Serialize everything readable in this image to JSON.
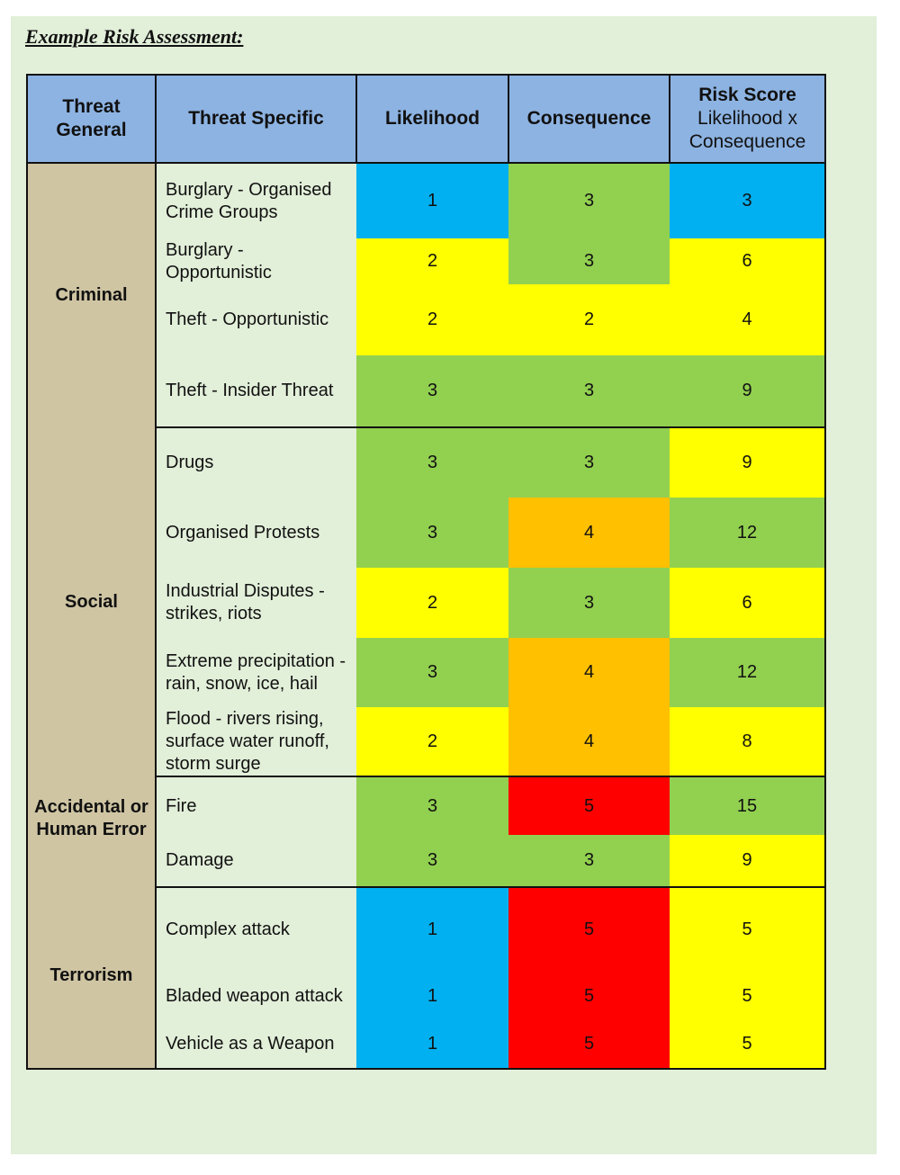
{
  "title": "Example Risk Assessment:",
  "headers": {
    "general": "Threat General",
    "specific": "Threat Specific",
    "likelihood": "Likelihood",
    "consequence": "Consequence",
    "risk_score": "Risk Score",
    "risk_score_sub": "Likelihood x Consequence"
  },
  "colors": {
    "blue": "#00b0f0",
    "green": "#92d050",
    "yellow": "#ffff00",
    "orange": "#ffc000",
    "red": "#ff0000",
    "header": "#8db3e2",
    "general_cell": "#cfc5a3",
    "page": "#e2efd9"
  },
  "groups": [
    {
      "name": "Criminal",
      "rows": [
        {
          "specific": "Burglary - Organised Crime Groups",
          "likelihood": "1",
          "consequence": "3",
          "score": "3",
          "lc": "blue",
          "cc": "green",
          "sc": "blue"
        },
        {
          "specific": "Burglary - Opportunistic",
          "likelihood": "2",
          "consequence": "3",
          "score": "6",
          "lc": "yellow",
          "cc": "green",
          "sc": "yellow"
        },
        {
          "specific": "Theft - Opportunistic",
          "likelihood": "2",
          "consequence": "2",
          "score": "4",
          "lc": "yellow",
          "cc": "yellow",
          "sc": "yellow"
        },
        {
          "specific": "Theft - Insider Threat",
          "likelihood": "3",
          "consequence": "3",
          "score": "9",
          "lc": "green",
          "cc": "green",
          "sc": "green"
        }
      ]
    },
    {
      "name": "Social",
      "rows": [
        {
          "specific": "Drugs",
          "likelihood": "3",
          "consequence": "3",
          "score": "9",
          "lc": "green",
          "cc": "green",
          "sc": "yellow"
        },
        {
          "specific": "Organised Protests",
          "likelihood": "3",
          "consequence": "4",
          "score": "12",
          "lc": "green",
          "cc": "orange",
          "sc": "green"
        },
        {
          "specific": "Industrial Disputes - strikes, riots",
          "likelihood": "2",
          "consequence": "3",
          "score": "6",
          "lc": "yellow",
          "cc": "green",
          "sc": "yellow"
        },
        {
          "specific": "Extreme precipitation - rain, snow, ice, hail",
          "likelihood": "3",
          "consequence": "4",
          "score": "12",
          "lc": "green",
          "cc": "orange",
          "sc": "green"
        },
        {
          "specific": "Flood - rivers rising, surface water runoff, storm surge",
          "likelihood": "2",
          "consequence": "4",
          "score": "8",
          "lc": "yellow",
          "cc": "orange",
          "sc": "yellow"
        }
      ]
    },
    {
      "name": "Accidental or Human Error",
      "rows": [
        {
          "specific": "Fire",
          "likelihood": "3",
          "consequence": "5",
          "score": "15",
          "lc": "green",
          "cc": "red",
          "sc": "green"
        },
        {
          "specific": "Damage",
          "likelihood": "3",
          "consequence": "3",
          "score": "9",
          "lc": "green",
          "cc": "green",
          "sc": "yellow"
        }
      ]
    },
    {
      "name": "Terrorism",
      "rows": [
        {
          "specific": "Complex attack",
          "likelihood": "1",
          "consequence": "5",
          "score": "5",
          "lc": "blue",
          "cc": "red",
          "sc": "yellow"
        },
        {
          "specific": "Bladed weapon attack",
          "likelihood": "1",
          "consequence": "5",
          "score": "5",
          "lc": "blue",
          "cc": "red",
          "sc": "yellow"
        },
        {
          "specific": "Vehicle as a Weapon",
          "likelihood": "1",
          "consequence": "5",
          "score": "5",
          "lc": "blue",
          "cc": "red",
          "sc": "yellow"
        }
      ]
    }
  ]
}
